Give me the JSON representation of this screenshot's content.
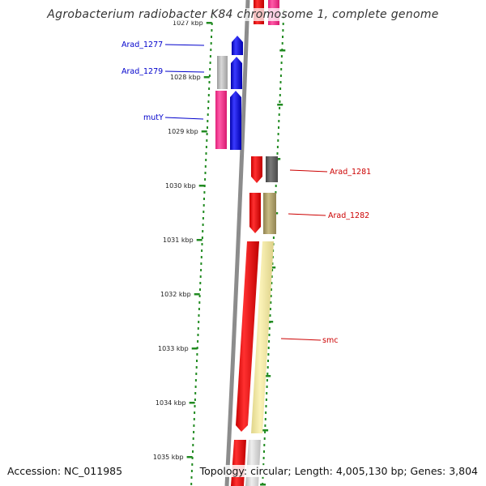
{
  "title": "Agrobacterium radiobacter K84 chromosome 1, complete genome",
  "footer": {
    "accession": "Accession: NC_011985",
    "topology": "Topology: circular; Length: 4,005,130 bp; Genes: 3,804"
  },
  "colors": {
    "backbone": "#8c8c8c",
    "tick": "#228b22",
    "label_left": "#0000cc",
    "label_right": "#cc0000"
  },
  "position_ticks": [
    {
      "label": "1027 kbp"
    },
    {
      "label": "1028 kbp"
    },
    {
      "label": "1029 kbp"
    },
    {
      "label": "1030 kbp"
    },
    {
      "label": "1031 kbp"
    },
    {
      "label": "1032 kbp"
    },
    {
      "label": "1033 kbp"
    },
    {
      "label": "1034 kbp"
    },
    {
      "label": "1035 kbp"
    }
  ],
  "gene_labels": {
    "left": [
      {
        "text": "Arad_1277"
      },
      {
        "text": "Arad_1279"
      },
      {
        "text": "mutY"
      }
    ],
    "right": [
      {
        "text": "Arad_1281"
      },
      {
        "text": "Arad_1282"
      },
      {
        "text": "smc"
      }
    ]
  }
}
